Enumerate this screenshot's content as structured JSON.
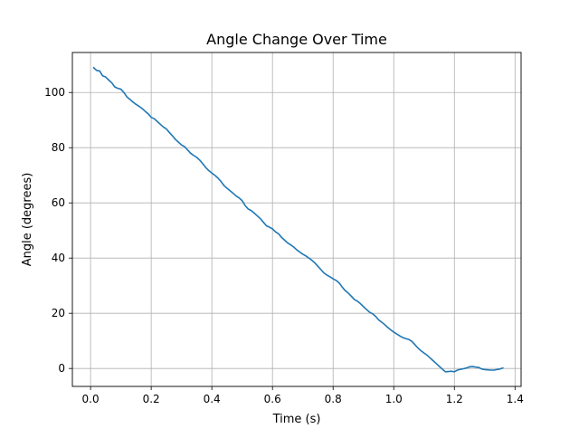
{
  "chart_data": {
    "type": "line",
    "title": "Angle Change Over Time",
    "xlabel": "Time (s)",
    "ylabel": "Angle (degrees)",
    "xlim": [
      -0.06,
      1.42
    ],
    "ylim": [
      -6.5,
      114.5
    ],
    "xticks": [
      0.0,
      0.2,
      0.4,
      0.6,
      0.8,
      1.0,
      1.2,
      1.4
    ],
    "xtick_labels": [
      "0.0",
      "0.2",
      "0.4",
      "0.6",
      "0.8",
      "1.0",
      "1.2",
      "1.4"
    ],
    "yticks": [
      0,
      20,
      40,
      60,
      80,
      100
    ],
    "ytick_labels": [
      "0",
      "20",
      "40",
      "60",
      "80",
      "100"
    ],
    "grid": true,
    "line_color": "#1f77b4",
    "series": [
      {
        "x": [
          0.01,
          0.02,
          0.03,
          0.04,
          0.05,
          0.06,
          0.07,
          0.08,
          0.09,
          0.1,
          0.11,
          0.12,
          0.13,
          0.14,
          0.15,
          0.16,
          0.17,
          0.18,
          0.19,
          0.2,
          0.21,
          0.22,
          0.23,
          0.24,
          0.25,
          0.26,
          0.27,
          0.28,
          0.29,
          0.3,
          0.31,
          0.32,
          0.33,
          0.34,
          0.35,
          0.36,
          0.37,
          0.38,
          0.39,
          0.4,
          0.41,
          0.42,
          0.43,
          0.44,
          0.45,
          0.46,
          0.47,
          0.48,
          0.49,
          0.5,
          0.51,
          0.52,
          0.53,
          0.54,
          0.55,
          0.56,
          0.57,
          0.58,
          0.59,
          0.6,
          0.61,
          0.62,
          0.63,
          0.64,
          0.65,
          0.66,
          0.67,
          0.68,
          0.69,
          0.7,
          0.71,
          0.72,
          0.73,
          0.74,
          0.75,
          0.76,
          0.77,
          0.78,
          0.79,
          0.8,
          0.81,
          0.82,
          0.83,
          0.84,
          0.85,
          0.86,
          0.87,
          0.88,
          0.89,
          0.9,
          0.91,
          0.92,
          0.93,
          0.94,
          0.95,
          0.96,
          0.97,
          0.98,
          0.99,
          1.0,
          1.01,
          1.02,
          1.03,
          1.04,
          1.05,
          1.06,
          1.07,
          1.08,
          1.09,
          1.1,
          1.11,
          1.12,
          1.13,
          1.14,
          1.15,
          1.16,
          1.17,
          1.18,
          1.19,
          1.2,
          1.21,
          1.22,
          1.23,
          1.24,
          1.25,
          1.26,
          1.27,
          1.28,
          1.29,
          1.3,
          1.31,
          1.32,
          1.33,
          1.34,
          1.35,
          1.36
        ],
        "y": [
          109,
          108,
          107.8,
          106,
          105.6,
          104.5,
          103.5,
          102,
          101.5,
          101.2,
          100,
          98.4,
          97.5,
          96.5,
          95.7,
          95,
          94.2,
          93.2,
          92.3,
          91,
          90.5,
          89.5,
          88.5,
          87.5,
          86.8,
          85.5,
          84.3,
          83,
          82,
          81,
          80.4,
          79.2,
          78,
          77.2,
          76.5,
          75.5,
          74.2,
          72.8,
          71.7,
          70.8,
          70,
          69,
          67.8,
          66.3,
          65.3,
          64.4,
          63.5,
          62.5,
          61.8,
          60.8,
          59,
          57.8,
          57.2,
          56.3,
          55.3,
          54.3,
          53,
          51.7,
          51.2,
          50.6,
          49.5,
          48.8,
          47.5,
          46.5,
          45.5,
          44.8,
          44,
          43,
          42.2,
          41.4,
          40.8,
          40,
          39.2,
          38.2,
          37,
          35.8,
          34.6,
          33.8,
          33.2,
          32.5,
          31.9,
          31,
          29.5,
          28.2,
          27.3,
          26.2,
          25,
          24.4,
          23.5,
          22.4,
          21.4,
          20.4,
          19.8,
          18.9,
          17.6,
          16.8,
          15.9,
          14.9,
          14,
          13.2,
          12.5,
          11.8,
          11.2,
          10.8,
          10.5,
          9.8,
          8.6,
          7.4,
          6.4,
          5.6,
          4.8,
          3.8,
          2.8,
          1.8,
          0.8,
          -0.2,
          -1.2,
          -1.1,
          -1.0,
          -1.2,
          -0.6,
          -0.3,
          -0.1,
          0.2,
          0.6,
          0.7,
          0.5,
          0.4,
          -0.2,
          -0.4,
          -0.5,
          -0.6,
          -0.6,
          -0.4,
          -0.2,
          0.2
        ]
      }
    ]
  }
}
